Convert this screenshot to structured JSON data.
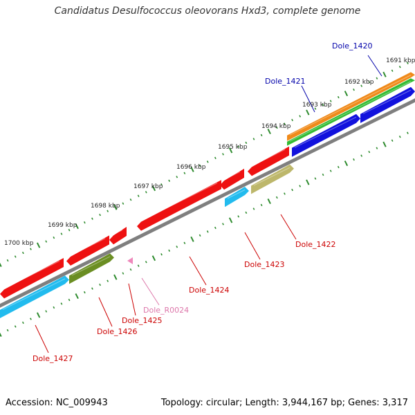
{
  "title": "Candidatus Desulfococcus oleovorans Hxd3, complete genome",
  "footer": {
    "accession": "Accession: NC_009943",
    "summary": "Topology: circular; Length: 3,944,167 bp; Genes: 3,317"
  },
  "colors": {
    "backbone": "#7f7f7f",
    "tick_green": "#2e8b2e",
    "cds": "#ee1111",
    "cds_blue": "#1111dd",
    "orange": "#f08a1a",
    "green": "#33bb33",
    "cyan": "#22bbee",
    "olive": "#6b8e23",
    "khaki": "#bdb76b",
    "pink": "#ee88bb",
    "label_red": "#cc0000",
    "label_blue": "#0000aa",
    "label_pink": "#dd77aa"
  },
  "kbp_labels": [
    {
      "kbp": 1691,
      "text": "1691 kbp"
    },
    {
      "kbp": 1692,
      "text": "1692 kbp"
    },
    {
      "kbp": 1693,
      "text": "1693 kbp"
    },
    {
      "kbp": 1694,
      "text": "1694 kbp"
    },
    {
      "kbp": 1695,
      "text": "1695 kbp"
    },
    {
      "kbp": 1696,
      "text": "1696 kbp"
    },
    {
      "kbp": 1697,
      "text": "1697 kbp"
    },
    {
      "kbp": 1698,
      "text": "1698 kbp"
    },
    {
      "kbp": 1699,
      "text": "1699 kbp"
    },
    {
      "kbp": 1700,
      "text": "1700 kbp"
    }
  ],
  "genes": [
    {
      "id": "Dole_1420",
      "text": "Dole_1420",
      "color": "label_blue"
    },
    {
      "id": "Dole_1421",
      "text": "Dole_1421",
      "color": "label_blue"
    },
    {
      "id": "Dole_1422",
      "text": "Dole_1422",
      "color": "label_red"
    },
    {
      "id": "Dole_1423",
      "text": "Dole_1423",
      "color": "label_red"
    },
    {
      "id": "Dole_1424",
      "text": "Dole_1424",
      "color": "label_red"
    },
    {
      "id": "Dole_R0024",
      "text": "Dole_R0024",
      "color": "label_pink"
    },
    {
      "id": "Dole_1425",
      "text": "Dole_1425",
      "color": "label_red"
    },
    {
      "id": "Dole_1426",
      "text": "Dole_1426",
      "color": "label_red"
    },
    {
      "id": "Dole_1427",
      "text": "Dole_1427",
      "color": "label_red"
    }
  ]
}
